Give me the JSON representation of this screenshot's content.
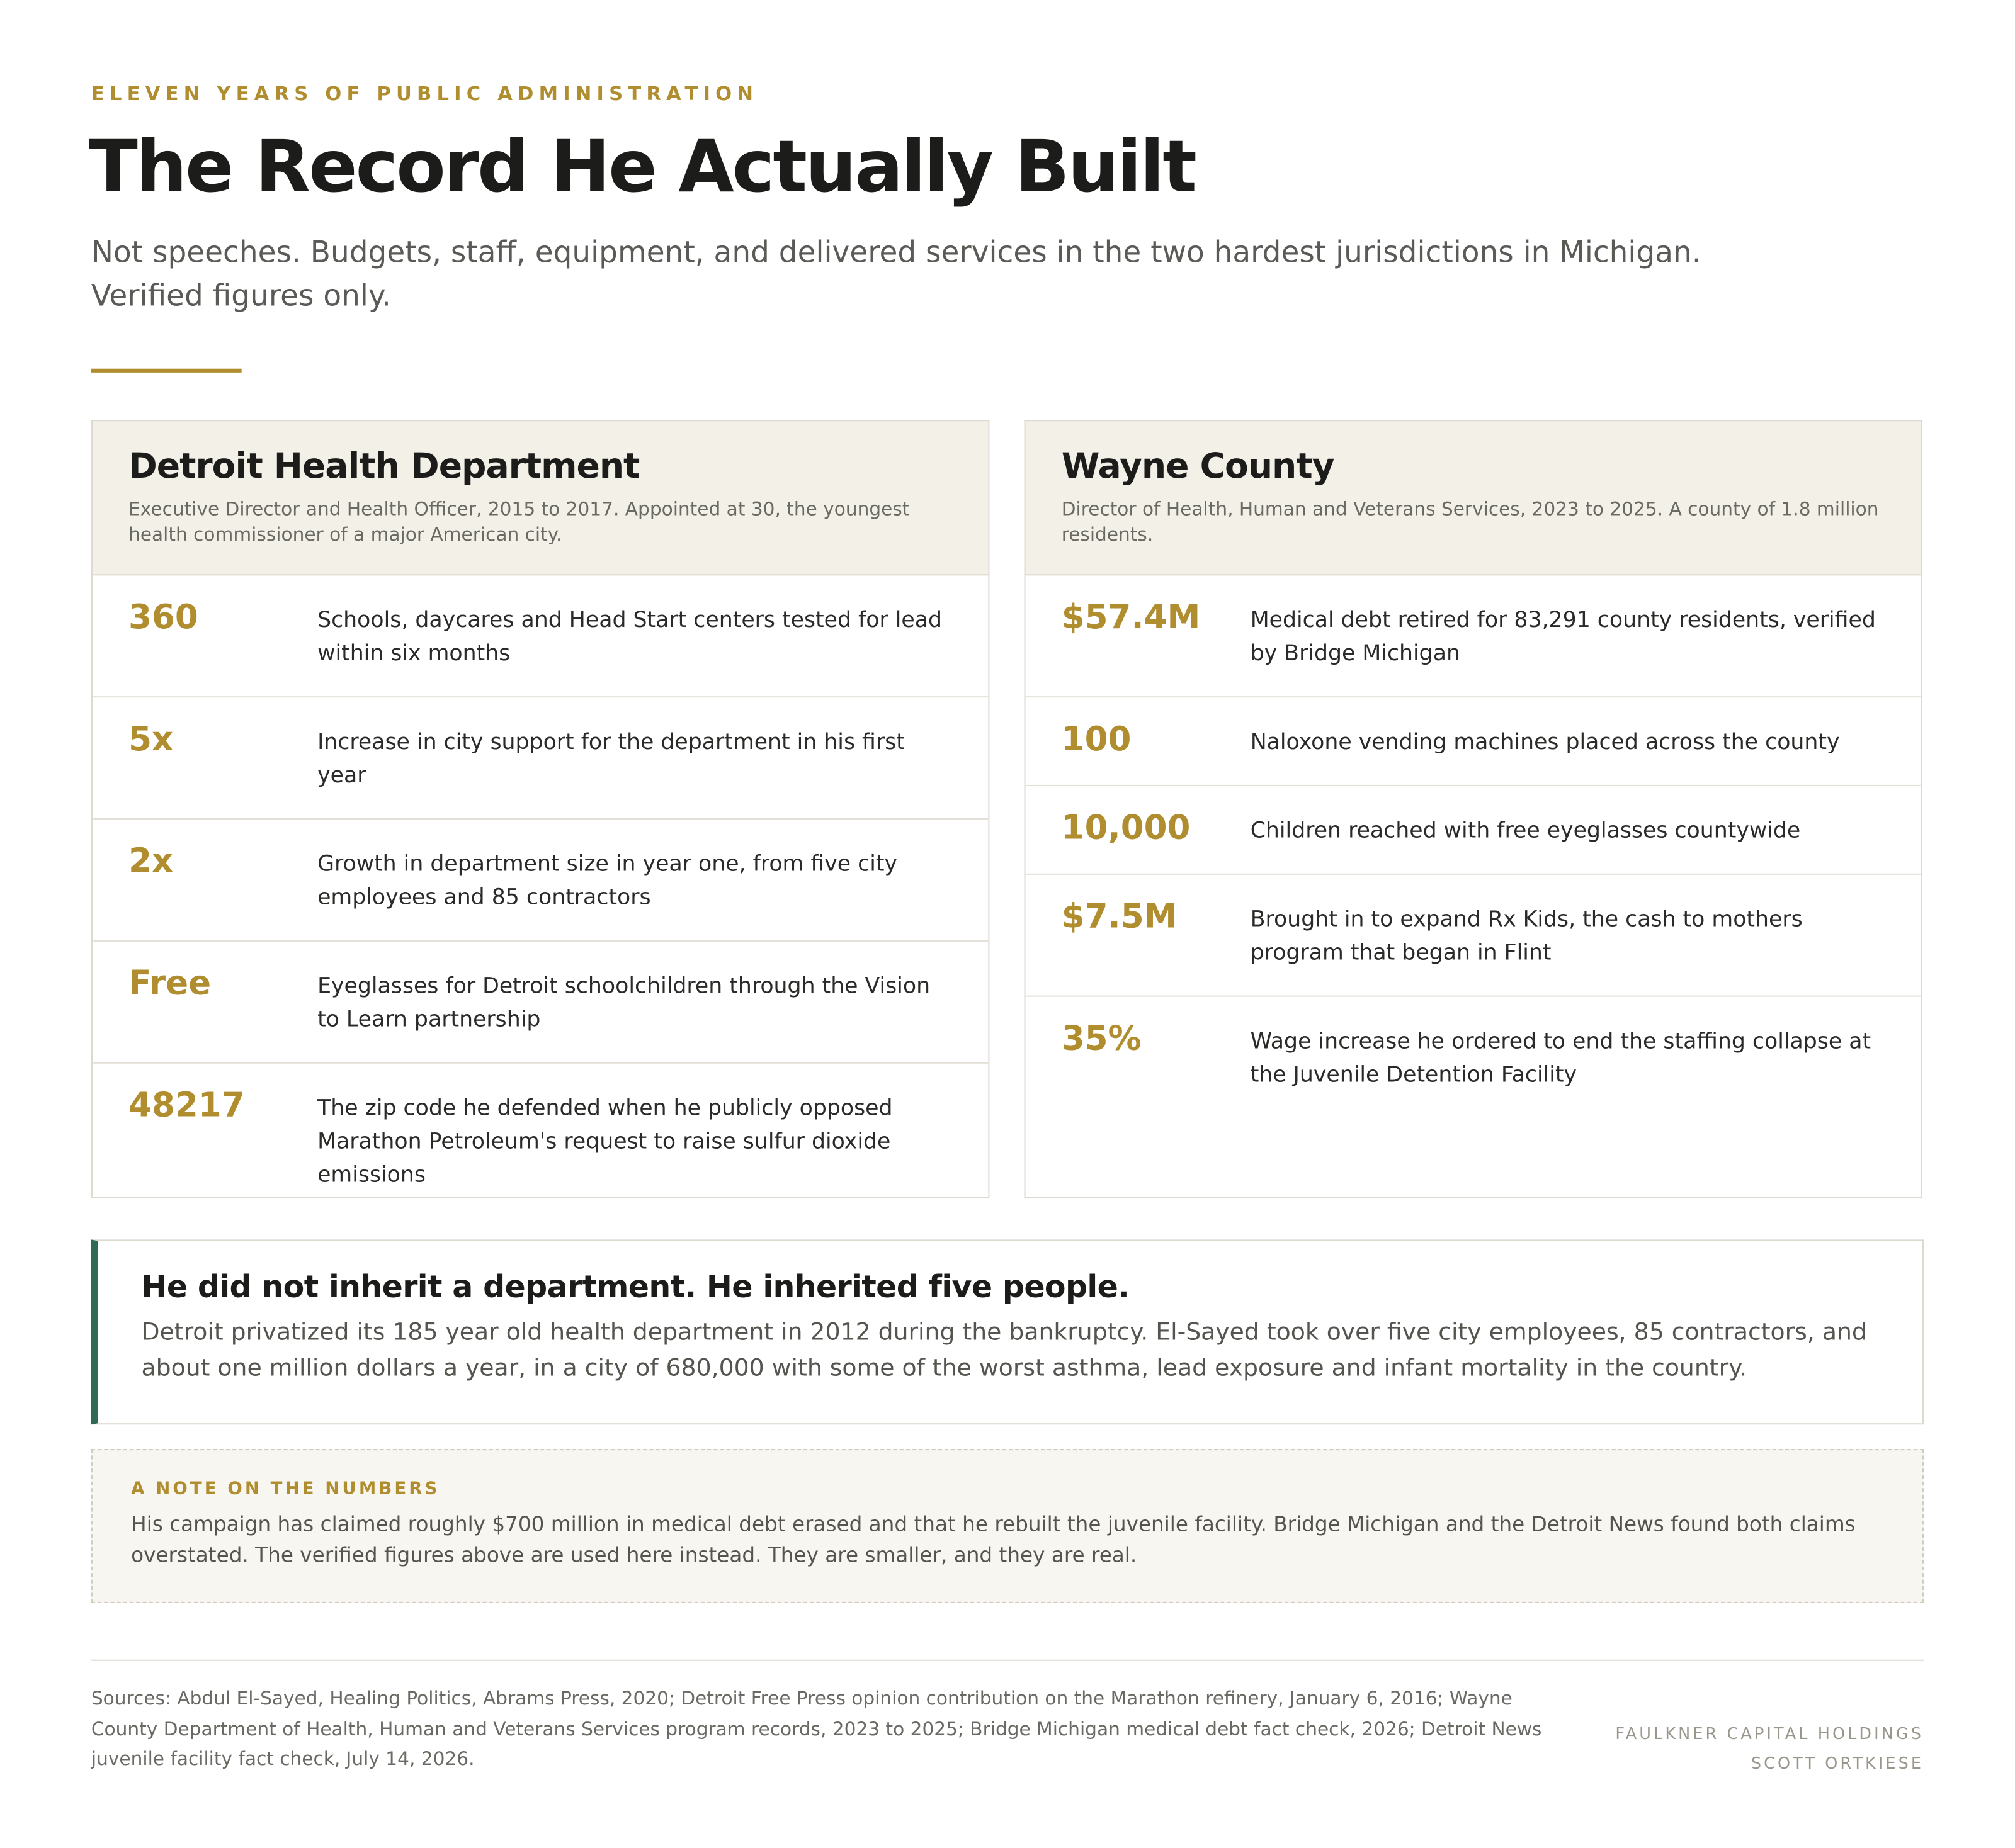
{
  "header": {
    "eyebrow": "ELEVEN YEARS OF PUBLIC ADMINISTRATION",
    "title": "The Record He Actually Built",
    "subtitle": "Not speeches. Budgets, staff, equipment, and delivered services in the two hardest jurisdictions in Michigan. Verified figures only."
  },
  "cards": [
    {
      "title": "Detroit Health Department",
      "subtitle": "Executive Director and Health Officer, 2015 to 2017. Appointed at 30, the youngest health commissioner of a major American city.",
      "rows": [
        {
          "figure": "360",
          "text": "Schools, daycares and Head Start centers tested for lead within six months"
        },
        {
          "figure": "5x",
          "text": "Increase in city support for the department in his first year"
        },
        {
          "figure": "2x",
          "text": "Growth in department size in year one, from five city employees and 85 contractors"
        },
        {
          "figure": "Free",
          "text": "Eyeglasses for Detroit schoolchildren through the Vision to Learn partnership"
        },
        {
          "figure": "48217",
          "text": "The zip code he defended when he publicly opposed Marathon Petroleum's request to raise sulfur dioxide emissions"
        }
      ]
    },
    {
      "title": "Wayne County",
      "subtitle": "Director of Health, Human and Veterans Services, 2023 to 2025. A county of 1.8 million residents.",
      "rows": [
        {
          "figure": "$57.4M",
          "text": "Medical debt retired for 83,291 county residents, verified by Bridge Michigan"
        },
        {
          "figure": "100",
          "text": "Naloxone vending machines placed across the county"
        },
        {
          "figure": "10,000",
          "text": "Children reached with free eyeglasses countywide"
        },
        {
          "figure": "$7.5M",
          "text": "Brought in to expand Rx Kids, the cash to mothers program that began in Flint"
        },
        {
          "figure": "35%",
          "text": "Wage increase he ordered to end the staffing collapse at the Juvenile Detention Facility"
        }
      ]
    }
  ],
  "callout": {
    "title": "He did not inherit a department. He inherited five people.",
    "text": "Detroit privatized its 185 year old health department in 2012 during the bankruptcy. El-Sayed took over five city employees, 85 contractors, and about one million dollars a year, in a city of 680,000 with some of the worst asthma, lead exposure and infant mortality in the country."
  },
  "note": {
    "title": "A NOTE ON THE NUMBERS",
    "text": "His campaign has claimed roughly $700 million in medical debt erased and that he rebuilt the juvenile facility. Bridge Michigan and the Detroit News found both claims overstated. The verified figures above are used here instead. They are smaller, and they are real."
  },
  "footer": {
    "sources": "Sources: Abdul El-Sayed, Healing Politics, Abrams Press, 2020; Detroit Free Press opinion contribution on the Marathon refinery, January 6, 2016; Wayne County Department of Health, Human and Veterans Services program records, 2023 to 2025; Bridge Michigan medical debt fact check, 2026; Detroit News juvenile facility fact check, July 14, 2026.",
    "credits": [
      "FAULKNER CAPITAL HOLDINGS",
      "SCOTT ORTKIESE"
    ]
  }
}
